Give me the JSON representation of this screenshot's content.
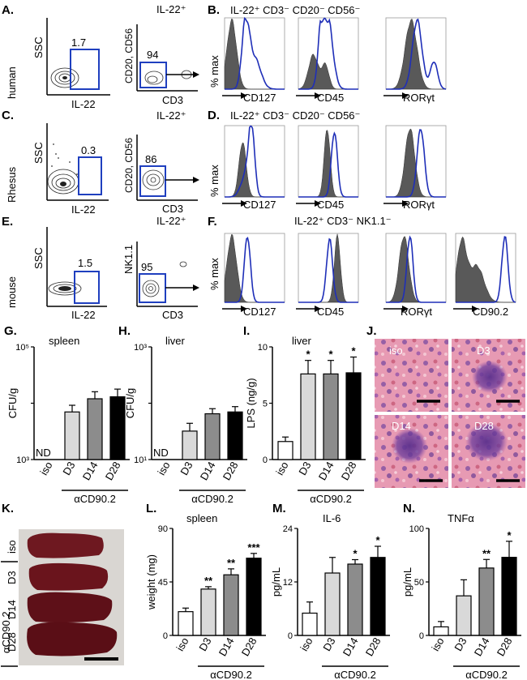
{
  "panels": {
    "A": {
      "letter": "A.",
      "species": "human",
      "gate_title": "IL-22⁺",
      "ssc": "SSC",
      "xaxis1": "IL-22",
      "pct1": "1.7",
      "yaxis2": "CD20, CD56",
      "xaxis2": "CD3",
      "pct2": "94"
    },
    "B": {
      "letter": "B.",
      "title": "IL-22⁺ CD3⁻ CD20⁻ CD56⁻",
      "yaxis": "% max",
      "markers": [
        "CD127",
        "CD45",
        "RORγt"
      ]
    },
    "C": {
      "letter": "C.",
      "species": "Rhesus",
      "gate_title": "IL-22⁺",
      "ssc": "SSC",
      "xaxis1": "IL-22",
      "pct1": "0.3",
      "yaxis2": "CD20, CD56",
      "xaxis2": "CD3",
      "pct2": "86"
    },
    "D": {
      "letter": "D.",
      "title": "IL-22⁺ CD3⁻ CD20⁻ CD56⁻",
      "yaxis": "% max",
      "markers": [
        "CD127",
        "CD45",
        "RORγt"
      ]
    },
    "E": {
      "letter": "E.",
      "species": "mouse",
      "gate_title": "IL-22⁺",
      "ssc": "SSC",
      "xaxis1": "IL-22",
      "pct1": "1.5",
      "yaxis2": "NK1.1",
      "xaxis2": "CD3",
      "pct2": "95"
    },
    "F": {
      "letter": "F.",
      "title": "IL-22⁺ CD3⁻ NK1.1⁻",
      "yaxis": "% max",
      "markers": [
        "CD127",
        "CD45",
        "RORγt",
        "CD90.2"
      ]
    },
    "J": {
      "letter": "J.",
      "labels": [
        "iso",
        "D3",
        "D14",
        "D28"
      ]
    },
    "K": {
      "letter": "K.",
      "labels": [
        "iso",
        "D3",
        "D14",
        "D28"
      ],
      "group": "αCD90.2"
    }
  },
  "chart_data": [
    {
      "id": "G",
      "letter": "G.",
      "type": "bar",
      "title": "spleen",
      "ylabel": "CFU/g",
      "yscale": "log",
      "ylim": [
        1000,
        100000
      ],
      "ytick_labels": [
        "10⁵",
        "10³"
      ],
      "categories": [
        "iso",
        "D3",
        "D14",
        "D28"
      ],
      "values": [
        null,
        7000,
        12000,
        13000
      ],
      "errors": [
        null,
        2200,
        4000,
        4800
      ],
      "bar_labels": [
        "ND",
        "",
        "",
        ""
      ],
      "xgroup": "αCD90.2",
      "significance": [
        "",
        "",
        "",
        ""
      ]
    },
    {
      "id": "H",
      "letter": "H.",
      "type": "bar",
      "title": "liver",
      "ylabel": "CFU/g",
      "yscale": "log",
      "ylim": [
        10,
        1000
      ],
      "ytick_labels": [
        "10³",
        "10¹"
      ],
      "categories": [
        "iso",
        "D3",
        "D14",
        "D28"
      ],
      "values": [
        null,
        32,
        65,
        70
      ],
      "errors": [
        null,
        12,
        15,
        17
      ],
      "bar_labels": [
        "ND",
        "",
        "",
        ""
      ],
      "xgroup": "αCD90.2",
      "significance": [
        "",
        "",
        "",
        ""
      ]
    },
    {
      "id": "I",
      "letter": "I.",
      "type": "bar",
      "title": "liver",
      "ylabel": "LPS (ng/g)",
      "yscale": "linear",
      "ylim": [
        0,
        10
      ],
      "ytick_labels": [
        "10",
        "5",
        "0"
      ],
      "yticks": [
        10,
        5,
        0
      ],
      "categories": [
        "iso",
        "D3",
        "D14",
        "D28"
      ],
      "values": [
        1.6,
        7.6,
        7.6,
        7.7
      ],
      "errors": [
        0.4,
        1.2,
        1.2,
        1.4
      ],
      "xgroup": "αCD90.2",
      "significance": [
        "",
        "*",
        "*",
        "*"
      ]
    },
    {
      "id": "L",
      "letter": "L.",
      "type": "bar",
      "title": "spleen",
      "ylabel": "weight (mg)",
      "yscale": "linear",
      "ylim": [
        0,
        90
      ],
      "ytick_labels": [
        "90",
        "45",
        "0"
      ],
      "yticks": [
        90,
        45,
        0
      ],
      "categories": [
        "iso",
        "D3",
        "D14",
        "D28"
      ],
      "values": [
        20,
        39,
        51,
        65
      ],
      "errors": [
        3,
        2,
        5,
        4
      ],
      "xgroup": "αCD90.2",
      "significance": [
        "",
        "**",
        "**",
        "***"
      ]
    },
    {
      "id": "M",
      "letter": "M.",
      "type": "bar",
      "title": "IL-6",
      "ylabel": "pg/mL",
      "yscale": "linear",
      "ylim": [
        0,
        24
      ],
      "ytick_labels": [
        "24",
        "12",
        "0"
      ],
      "yticks": [
        24,
        12,
        0
      ],
      "categories": [
        "iso",
        "D3",
        "D14",
        "D28"
      ],
      "values": [
        5,
        14,
        16,
        17.5
      ],
      "errors": [
        2.5,
        3.5,
        1,
        2.5
      ],
      "xgroup": "αCD90.2",
      "significance": [
        "",
        "",
        "*",
        "*"
      ]
    },
    {
      "id": "N",
      "letter": "N.",
      "type": "bar",
      "title": "TNFα",
      "ylabel": "pg/mL",
      "yscale": "linear",
      "ylim": [
        0,
        100
      ],
      "ytick_labels": [
        "100",
        "50",
        "0"
      ],
      "yticks": [
        100,
        50,
        0
      ],
      "categories": [
        "iso",
        "D3",
        "D14",
        "D28"
      ],
      "values": [
        8,
        37,
        63,
        73
      ],
      "errors": [
        5,
        15,
        8,
        15
      ],
      "xgroup": "αCD90.2",
      "significance": [
        "",
        "",
        "**",
        "*"
      ]
    }
  ]
}
